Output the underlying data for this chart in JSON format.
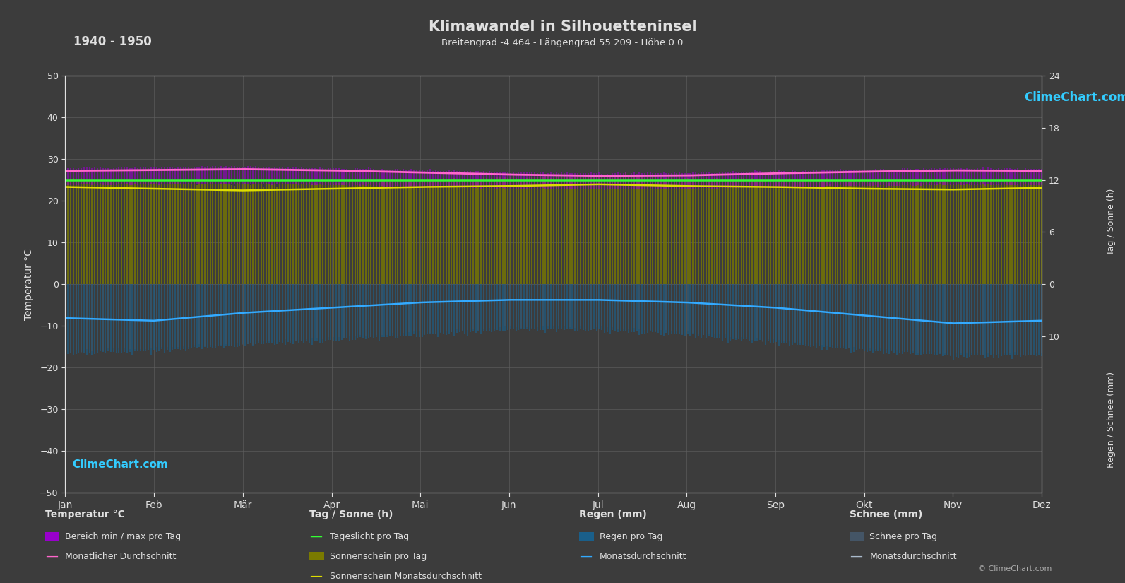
{
  "title": "Klimawandel in Silhouetteninsel",
  "subtitle": "Breitengrad -4.464 - Längengrad 55.209 - Höhe 0.0",
  "year_range": "1940 - 1950",
  "background_color": "#3c3c3c",
  "grid_color": "#606060",
  "text_color": "#e0e0e0",
  "months": [
    "Jan",
    "Feb",
    "Mär",
    "Apr",
    "Mai",
    "Jun",
    "Jul",
    "Aug",
    "Sep",
    "Okt",
    "Nov",
    "Dez"
  ],
  "temp_ylim": [
    -50,
    50
  ],
  "temp_avg": [
    27.2,
    27.4,
    27.6,
    27.3,
    26.8,
    26.3,
    26.0,
    26.1,
    26.6,
    27.0,
    27.3,
    27.2
  ],
  "temp_min_daily": [
    23.8,
    23.9,
    24.1,
    23.8,
    23.4,
    23.0,
    22.8,
    22.9,
    23.3,
    23.6,
    23.8,
    23.8
  ],
  "temp_max_daily": [
    27.8,
    28.0,
    28.2,
    27.8,
    27.4,
    26.9,
    26.6,
    26.7,
    27.1,
    27.5,
    27.8,
    27.7
  ],
  "daylight_h": [
    12.0,
    12.0,
    12.0,
    12.0,
    12.0,
    12.0,
    12.0,
    12.0,
    12.0,
    12.0,
    12.0,
    12.0
  ],
  "sunshine_avg_h": [
    11.2,
    11.0,
    10.8,
    11.0,
    11.2,
    11.3,
    11.5,
    11.3,
    11.2,
    11.0,
    10.9,
    11.1
  ],
  "sunshine_max_h": [
    12.0,
    11.8,
    11.5,
    11.7,
    12.0,
    12.2,
    12.5,
    12.2,
    12.0,
    11.8,
    11.6,
    11.8
  ],
  "rain_avg_mm": [
    6.5,
    7.0,
    5.5,
    4.5,
    3.5,
    3.0,
    3.0,
    3.5,
    4.5,
    6.0,
    7.5,
    7.0
  ],
  "rain_max_mm": [
    13.0,
    12.5,
    11.5,
    10.5,
    9.5,
    8.5,
    8.5,
    9.5,
    11.0,
    12.5,
    13.5,
    13.5
  ],
  "snow_max_mm": [
    12.5,
    12.0,
    11.0,
    10.0,
    9.0,
    8.0,
    8.0,
    9.0,
    10.5,
    12.0,
    13.0,
    13.0
  ],
  "sun_right_ticks_h": [
    0,
    6,
    12,
    18,
    24
  ],
  "rain_right_ticks_mm": [
    10
  ],
  "temp_fill_color": "#9900cc",
  "temp_line_color": "#ff66cc",
  "daylight_color": "#33ff33",
  "sunshine_fill_color": "#7a7a00",
  "sunshine_line_color": "#dddd00",
  "rain_fill_color": "#1a5f8a",
  "rain_line_color": "#33aaff",
  "snow_fill_color": "#445566",
  "snow_line_color": "#aabbcc",
  "logo_text_color": "#33ccff",
  "copyright_color": "#aaaaaa"
}
